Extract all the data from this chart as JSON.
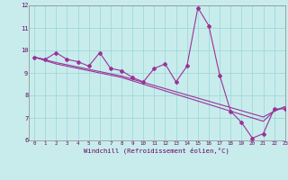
{
  "xlabel": "Windchill (Refroidissement éolien,°C)",
  "background_color": "#c8ecec",
  "line_color": "#993399",
  "grid_color": "#a0d8d8",
  "x_values": [
    0,
    1,
    2,
    3,
    4,
    5,
    6,
    7,
    8,
    9,
    10,
    11,
    12,
    13,
    14,
    15,
    16,
    17,
    18,
    19,
    20,
    21,
    22,
    23
  ],
  "series_main": [
    9.7,
    9.6,
    9.9,
    9.6,
    9.5,
    9.3,
    9.9,
    9.2,
    9.1,
    8.8,
    8.6,
    9.2,
    9.4,
    8.6,
    9.3,
    11.9,
    11.1,
    8.9,
    7.3,
    6.8,
    6.1,
    6.3,
    7.4,
    7.4
  ],
  "series_line1": [
    9.7,
    9.55,
    9.4,
    9.3,
    9.2,
    9.1,
    9.0,
    8.9,
    8.8,
    8.65,
    8.5,
    8.35,
    8.2,
    8.05,
    7.9,
    7.75,
    7.6,
    7.45,
    7.3,
    7.15,
    7.0,
    6.85,
    7.3,
    7.5
  ],
  "series_line2": [
    9.7,
    9.58,
    9.46,
    9.36,
    9.26,
    9.16,
    9.06,
    8.96,
    8.86,
    8.72,
    8.58,
    8.44,
    8.3,
    8.16,
    8.02,
    7.88,
    7.74,
    7.6,
    7.46,
    7.32,
    7.18,
    7.04,
    7.3,
    7.5
  ],
  "ylim": [
    6,
    12
  ],
  "xlim": [
    -0.5,
    23
  ],
  "yticks": [
    6,
    7,
    8,
    9,
    10,
    11,
    12
  ],
  "xticks": [
    0,
    1,
    2,
    3,
    4,
    5,
    6,
    7,
    8,
    9,
    10,
    11,
    12,
    13,
    14,
    15,
    16,
    17,
    18,
    19,
    20,
    21,
    22,
    23
  ]
}
